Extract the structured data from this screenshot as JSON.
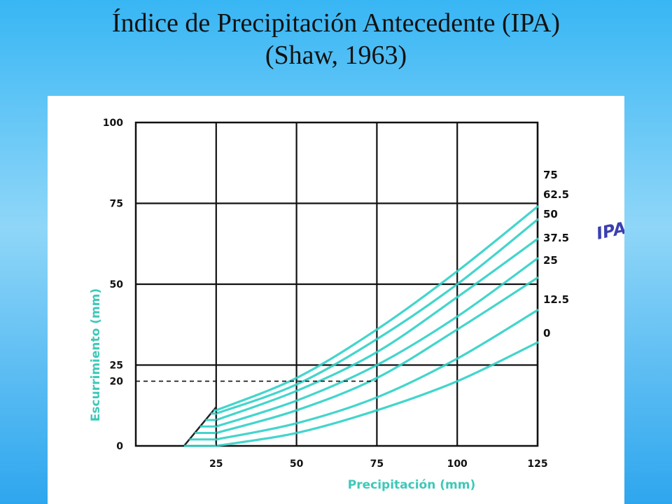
{
  "title": {
    "line1": "Índice de Precipitación Antecedente (IPA)",
    "line2": "(Shaw, 1963)"
  },
  "colors": {
    "curve": "#2fd0c6",
    "axis_label": "#3ec8b8",
    "grid": "#111111",
    "ipa_label": "#3a3fb0"
  },
  "chart_data": {
    "type": "line",
    "title": "",
    "xlabel": "Precipitación (mm)",
    "ylabel": "Escurrimiento (mm)",
    "legend_title": "IPA",
    "xlim": [
      0,
      125
    ],
    "ylim": [
      0,
      100
    ],
    "x_ticks": [
      25,
      50,
      75,
      100,
      125
    ],
    "x_tick_labels": [
      "25",
      "50",
      "75",
      "100",
      "125"
    ],
    "y_ticks": [
      0,
      20,
      25,
      50,
      75,
      100
    ],
    "y_tick_labels": [
      "0",
      "20",
      "25",
      "50",
      "75",
      "100"
    ],
    "grid": true,
    "reference_line": {
      "y": 20,
      "x_from": 0,
      "x_to": 75,
      "style": "dashed"
    },
    "series": [
      {
        "name": "0",
        "x": [
          25,
          50,
          75,
          100,
          125
        ],
        "y": [
          0,
          4,
          11,
          20,
          32
        ]
      },
      {
        "name": "12.5",
        "x": [
          25,
          50,
          75,
          100,
          125
        ],
        "y": [
          2,
          7,
          15,
          27,
          42
        ]
      },
      {
        "name": "25",
        "x": [
          25,
          50,
          75,
          100,
          125
        ],
        "y": [
          4,
          11,
          21,
          36,
          52
        ]
      },
      {
        "name": "37.5",
        "x": [
          25,
          50,
          75,
          100,
          125
        ],
        "y": [
          6,
          14,
          25,
          40,
          58
        ]
      },
      {
        "name": "50",
        "x": [
          25,
          50,
          75,
          100,
          125
        ],
        "y": [
          8,
          17,
          29,
          46,
          64
        ]
      },
      {
        "name": "62.5",
        "x": [
          25,
          50,
          75,
          100,
          125
        ],
        "y": [
          10,
          19,
          33,
          50,
          70
        ]
      },
      {
        "name": "75",
        "x": [
          25,
          50,
          75,
          100,
          125
        ],
        "y": [
          11,
          21,
          36,
          54,
          74
        ]
      }
    ],
    "series_labels": [
      "75",
      "62.5",
      "50",
      "37.5",
      "25",
      "12.5",
      "0"
    ]
  }
}
